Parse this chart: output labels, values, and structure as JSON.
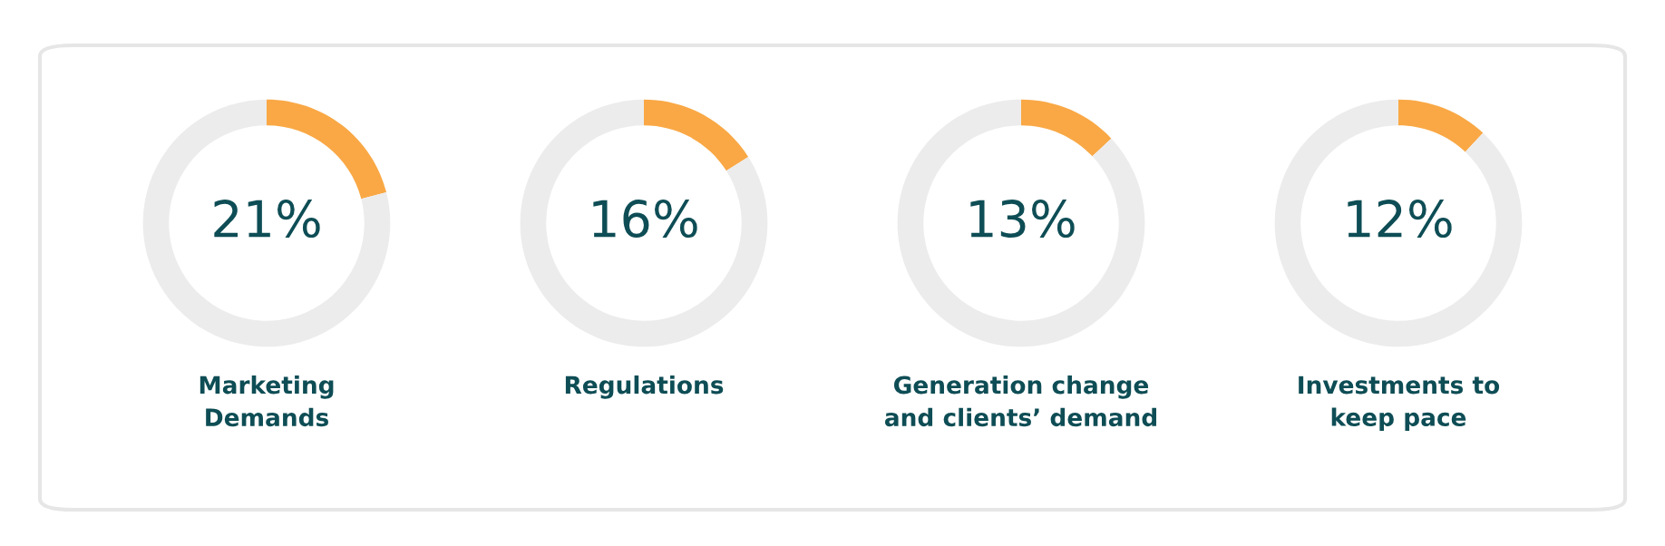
{
  "chart_data": [
    {
      "type": "donut",
      "title": "Marketing\nDemands",
      "categories": [
        null,
        null
      ],
      "values": [
        21,
        79
      ],
      "colors": [
        "#f9a845",
        "#ececec"
      ],
      "value_labels": [
        "21%",
        null
      ]
    },
    {
      "type": "donut",
      "title": "Regulations",
      "categories": [
        null,
        null
      ],
      "values": [
        16,
        84
      ],
      "colors": [
        "#f9a845",
        "#ececec"
      ],
      "value_labels": [
        "16%",
        null
      ]
    },
    {
      "type": "donut",
      "title": "Generation change\nand clients’ demand",
      "categories": [
        null,
        null
      ],
      "values": [
        13,
        87
      ],
      "colors": [
        "#f9a845",
        "#ececec"
      ],
      "value_labels": [
        "13%",
        null
      ]
    },
    {
      "type": "donut",
      "title": "Investments to\nkeep pace",
      "categories": [
        null,
        null
      ],
      "values": [
        12,
        88
      ],
      "colors": [
        "#f9a845",
        "#ececec"
      ],
      "value_labels": [
        "12%",
        null
      ]
    }
  ]
}
